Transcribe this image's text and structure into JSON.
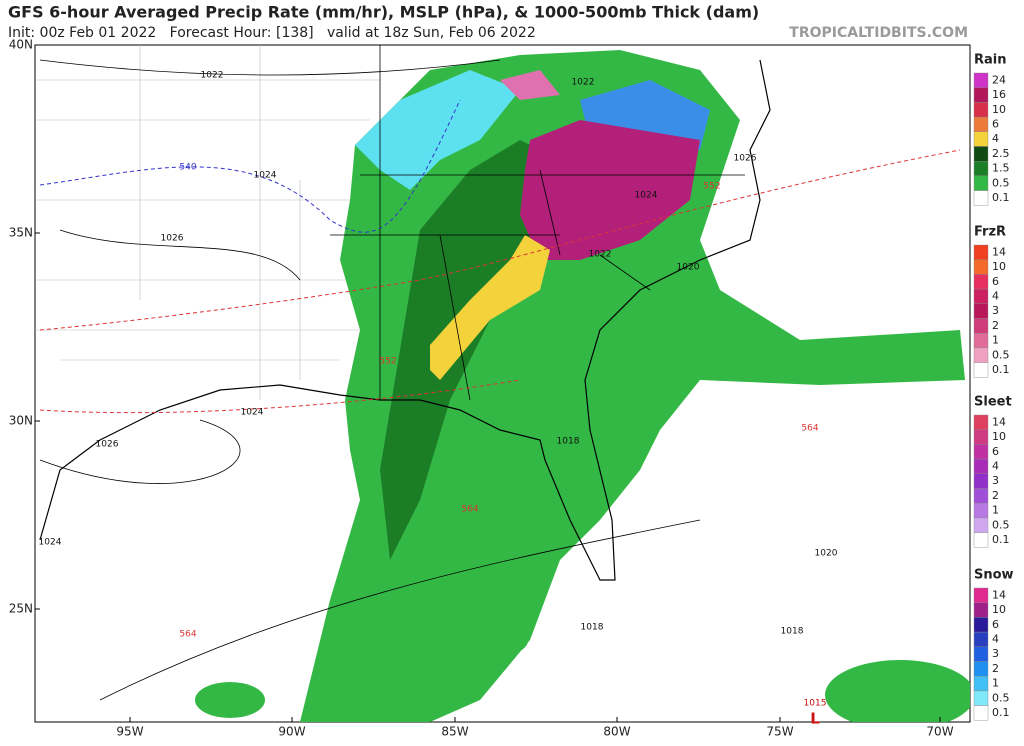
{
  "header": {
    "title": "GFS 6-hour Averaged Precip Rate (mm/hr), MSLP (hPa), & 1000-500mb Thick (dam)",
    "subtitle": "Init: 00z Feb 01 2022   Forecast Hour: [138]   valid at 18z Sun, Feb 06 2022",
    "source": "TROPICALTIDBITS.COM"
  },
  "map": {
    "lat_labels": [
      "40N",
      "35N",
      "30N",
      "25N"
    ],
    "lon_labels": [
      "95W",
      "90W",
      "85W",
      "80W",
      "75W",
      "70W"
    ],
    "contour_labels": [
      1022,
      540,
      1024,
      1026,
      1022,
      1026,
      1024,
      552,
      1022,
      1020,
      552,
      1024,
      1026,
      1018,
      564,
      564,
      1024,
      1020,
      1018,
      1018,
      564,
      1015
    ],
    "low_marker": "L"
  },
  "legends": [
    {
      "title": "Rain",
      "levels": [
        24,
        16,
        10,
        6,
        4,
        2.5,
        1.5,
        0.5,
        0.1
      ],
      "colors": [
        "#d033c8",
        "#b0185a",
        "#d8304a",
        "#ee7a3a",
        "#f3d23c",
        "#0e4a12",
        "#1b7e27",
        "#32b845",
        "#ffffff"
      ]
    },
    {
      "title": "FrzR",
      "levels": [
        14,
        10,
        6,
        4,
        3,
        2,
        1,
        0.5,
        0.1
      ],
      "colors": [
        "#f04020",
        "#f36a2a",
        "#e83060",
        "#cc2060",
        "#b8185a",
        "#d03c7a",
        "#e06a98",
        "#f0a0c0",
        "#ffffff"
      ]
    },
    {
      "title": "Sleet",
      "levels": [
        14,
        10,
        6,
        4,
        3,
        2,
        1,
        0.5,
        0.1
      ],
      "colors": [
        "#e04060",
        "#d03a80",
        "#c030a0",
        "#a82cb8",
        "#9030c8",
        "#a050d8",
        "#b878e4",
        "#d0a8f0",
        "#ffffff"
      ]
    },
    {
      "title": "Snow",
      "levels": [
        14,
        10,
        6,
        4,
        3,
        2,
        1,
        0.5,
        0.1
      ],
      "colors": [
        "#e02a90",
        "#a0208a",
        "#2a1a9a",
        "#2840c0",
        "#2060e0",
        "#2090f0",
        "#40c0f4",
        "#80e8f8",
        "#ffffff"
      ]
    }
  ]
}
